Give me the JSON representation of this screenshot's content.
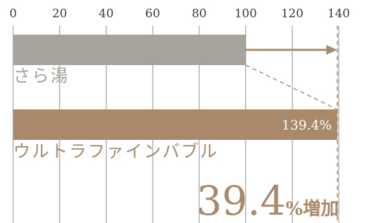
{
  "chart_data": {
    "type": "bar",
    "orientation": "horizontal",
    "categories": [
      "さら湯",
      "ウルトラファインバブル"
    ],
    "values": [
      100,
      139.4
    ],
    "data_labels": [
      "",
      "139.4%"
    ],
    "xlim": [
      0,
      140
    ],
    "xticks": [
      0,
      20,
      40,
      60,
      80,
      100,
      120,
      140
    ],
    "grid": true,
    "annotation": {
      "number": "39.4",
      "suffix": "%増加"
    }
  },
  "colors": {
    "bar_plain": "#a6a29c",
    "bar_bubble": "#a9896a",
    "accent": "#a9896a",
    "grid": "#a8a8a8",
    "label_plain": "#a6a29c"
  }
}
